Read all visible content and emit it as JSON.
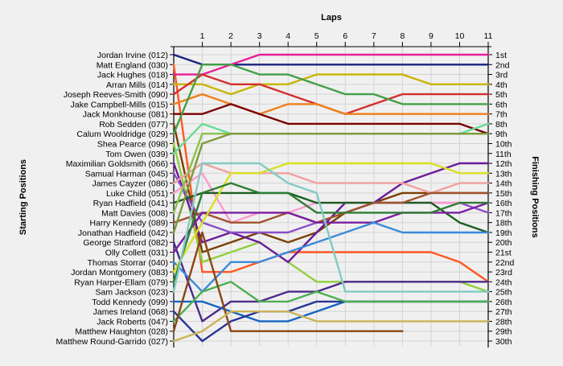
{
  "chart_data": {
    "type": "line",
    "title": "Laps",
    "ylabel_left": "Starting Positions",
    "ylabel_right": "Finishing Positions",
    "laps": [
      1,
      2,
      3,
      4,
      5,
      6,
      7,
      8,
      9,
      10,
      11
    ],
    "finish_labels": [
      "1st",
      "2nd",
      "3rd",
      "4th",
      "5th",
      "6th",
      "7th",
      "8th",
      "9th",
      "10th",
      "11th",
      "12th",
      "13th",
      "14th",
      "15th",
      "16th",
      "17th",
      "18th",
      "19th",
      "20th",
      "21st",
      "22nd",
      "23rd",
      "24th",
      "25th",
      "26th",
      "27th",
      "28th",
      "29th",
      "30th"
    ],
    "grid": true,
    "series": [
      {
        "name": "Jordan Irvine (012)",
        "color": "#1a237e",
        "positions": [
          1,
          2,
          2,
          2,
          2,
          2,
          2,
          2,
          2,
          2,
          2,
          2
        ]
      },
      {
        "name": "Matt England (030)",
        "color": "#ff5722",
        "positions": [
          2,
          23,
          23,
          22,
          21,
          21,
          21,
          21,
          21,
          21,
          22,
          24
        ]
      },
      {
        "name": "Jack Hughes (018)",
        "color": "#e91e9a",
        "positions": [
          3,
          3,
          2,
          1,
          1,
          1,
          1,
          1,
          1,
          1,
          1,
          1
        ]
      },
      {
        "name": "Arran Mills (014)",
        "color": "#c8b400",
        "positions": [
          4,
          4,
          5,
          4,
          4,
          3,
          3,
          3,
          3,
          4,
          4,
          4
        ]
      },
      {
        "name": "Joseph Reeves-Smith (090)",
        "color": "#d32f2f",
        "positions": [
          5,
          3,
          4,
          4,
          5,
          6,
          7,
          6,
          5,
          5,
          5,
          5
        ]
      },
      {
        "name": "Jake Campbell-Mills (015)",
        "color": "#ef7f1a",
        "positions": [
          6,
          5,
          6,
          7,
          6,
          6,
          7,
          7,
          7,
          7,
          7,
          7
        ]
      },
      {
        "name": "Jack Monkhouse (081)",
        "color": "#7b0000",
        "positions": [
          7,
          7,
          6,
          7,
          8,
          8,
          8,
          8,
          8,
          8,
          8,
          9
        ]
      },
      {
        "name": "Rob Sedden (077)",
        "color": "#7b3f00",
        "positions": [
          8,
          21,
          20,
          19,
          20,
          19,
          17,
          16,
          15,
          15,
          15,
          15
        ]
      },
      {
        "name": "Calum Wooldridge (029)",
        "color": "#43a047",
        "positions": [
          9,
          2,
          2,
          3,
          3,
          4,
          5,
          5,
          6,
          6,
          6,
          6
        ]
      },
      {
        "name": "Shea Pearce (098)",
        "color": "#8fcf3c",
        "positions": [
          10,
          22,
          21,
          20,
          22,
          24,
          24,
          24,
          24,
          24,
          24,
          25
        ]
      },
      {
        "name": "Tom Owen (039)",
        "color": "#64dc96",
        "positions": [
          11,
          8,
          9,
          9,
          9,
          9,
          9,
          9,
          9,
          9,
          9,
          8
        ]
      },
      {
        "name": "Maximilian Goldsmith (066)",
        "color": "#6a1b9a",
        "positions": [
          12,
          20,
          19,
          20,
          22,
          19,
          16,
          16,
          14,
          13,
          12,
          12
        ]
      },
      {
        "name": "Samual Harman (045)",
        "color": "#8a4fc8",
        "positions": [
          13,
          18,
          19,
          19,
          19,
          18,
          17,
          16,
          16,
          16,
          16,
          17
        ]
      },
      {
        "name": "James Cayzer (086)",
        "color": "#f0a0a0",
        "positions": [
          14,
          12,
          13,
          13,
          13,
          14,
          14,
          14,
          14,
          15,
          14,
          14
        ]
      },
      {
        "name": "Luke Child (051)",
        "color": "#ff9ad0",
        "positions": [
          15,
          13,
          18,
          17,
          17,
          16,
          16,
          16,
          16,
          16,
          16,
          16
        ]
      },
      {
        "name": "Ryan Hadfield (041)",
        "color": "#1b5e20",
        "positions": [
          16,
          15,
          15,
          15,
          15,
          16,
          16,
          16,
          16,
          16,
          18,
          19
        ]
      },
      {
        "name": "Matt Davies (008)",
        "color": "#8bc34a",
        "positions": [
          17,
          9,
          9,
          9,
          9,
          9,
          9,
          9,
          9,
          9,
          9,
          9
        ]
      },
      {
        "name": "Harry Kennedy (089)",
        "color": "#a0522d",
        "positions": [
          18,
          17,
          18,
          18,
          17,
          18,
          17,
          16,
          16,
          15,
          15,
          15
        ]
      },
      {
        "name": "Jonathan Hadfield (042)",
        "color": "#7d9a3c",
        "positions": [
          19,
          10,
          9,
          9,
          9,
          9,
          9,
          9,
          9,
          9,
          9,
          9
        ]
      },
      {
        "name": "George Stratford (082)",
        "color": "#4c2a8a",
        "positions": [
          20,
          28,
          26,
          26,
          25,
          25,
          24,
          24,
          24,
          24,
          24,
          24
        ]
      },
      {
        "name": "Olly Collett (031)",
        "color": "#7b1fa2",
        "positions": [
          21,
          17,
          17,
          17,
          17,
          18,
          18,
          18,
          17,
          17,
          17,
          16
        ]
      },
      {
        "name": "Thomas Storrar (040)",
        "color": "#3a8ad8",
        "positions": [
          22,
          25,
          22,
          22,
          21,
          20,
          19,
          18,
          19,
          19,
          19,
          19
        ]
      },
      {
        "name": "Jordan Montgomery (083)",
        "color": "#d8e020",
        "positions": [
          23,
          18,
          13,
          13,
          12,
          12,
          12,
          12,
          12,
          12,
          13,
          13
        ]
      },
      {
        "name": "Ryan Harper-Ellam (079)",
        "color": "#2e7d32",
        "positions": [
          24,
          15,
          14,
          15,
          15,
          17,
          17,
          17,
          17,
          17,
          16,
          16
        ]
      },
      {
        "name": "Sam Jackson (023)",
        "color": "#80cbc4",
        "positions": [
          25,
          12,
          12,
          12,
          14,
          15,
          25,
          25,
          25,
          25,
          25,
          25
        ]
      },
      {
        "name": "Todd Kennedy (099)",
        "color": "#1565c0",
        "positions": [
          26,
          26,
          27,
          28,
          28,
          27,
          26,
          26,
          26,
          26,
          26,
          26
        ]
      },
      {
        "name": "James Ireland (068)",
        "color": "#283593",
        "positions": [
          27,
          30,
          28,
          27,
          27,
          26,
          26,
          26,
          26,
          26,
          26,
          26
        ]
      },
      {
        "name": "Jack Roberts (047)",
        "color": "#4caf50",
        "positions": [
          28,
          25,
          24,
          26,
          26,
          25,
          26,
          26,
          26,
          26,
          26,
          26
        ]
      },
      {
        "name": "Matthew Haughton (028)",
        "color": "#8b4513",
        "positions": [
          29,
          19,
          29,
          29,
          29,
          29,
          29,
          29,
          29
        ]
      },
      {
        "name": "Matthew Round-Garrido (027)",
        "color": "#c9b458",
        "positions": [
          30,
          29,
          27,
          27,
          27,
          28,
          28,
          28,
          28,
          28,
          28,
          28
        ]
      }
    ]
  }
}
